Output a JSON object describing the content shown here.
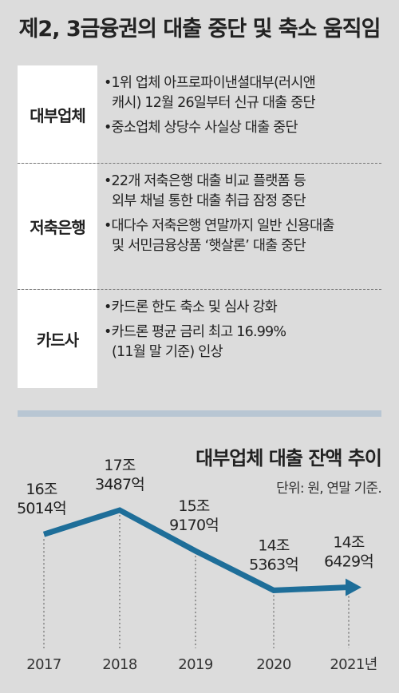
{
  "title": "제2, 3금융권의 대출 중단 및 축소 움직임",
  "table": [
    {
      "label": "대부업체",
      "bullets": [
        "•1위 업체 아프로파이낸셜대부(러시앤\n캐시) 12월 26일부터 신규 대출 중단",
        "•중소업체 상당수 사실상 대출 중단"
      ]
    },
    {
      "label": "저축은행",
      "bullets": [
        "•22개 저축은행 대출 비교 플랫폼 등\n외부 채널 통한 대출 취급 잠정 중단",
        "•대다수 저축은행 연말까지 일반 신용대출\n및 서민금융상품 ‘햇살론’ 대출 중단"
      ]
    },
    {
      "label": "카드사",
      "bullets": [
        "•카드론 한도 축소 및 심사 강화",
        "•카드론 평균 금리 최고 16.99%\n(11월 말 기준) 인상"
      ]
    }
  ],
  "chart_data": {
    "type": "line",
    "title": "대부업체 대출 잔액 추이",
    "subtitle": "단위: 원, 연말 기준.",
    "categories": [
      "2017",
      "2018",
      "2019",
      "2020",
      "2021년"
    ],
    "values": [
      165014,
      173487,
      159170,
      145363,
      146429
    ],
    "value_labels": [
      [
        "16조",
        "5014억"
      ],
      [
        "17조",
        "3487억"
      ],
      [
        "15조",
        "9170억"
      ],
      [
        "14조",
        "5363억"
      ],
      [
        "14조",
        "6429억"
      ]
    ],
    "ylim": [
      120000,
      190000
    ],
    "grid": false,
    "line_color": "#1e6e99"
  }
}
